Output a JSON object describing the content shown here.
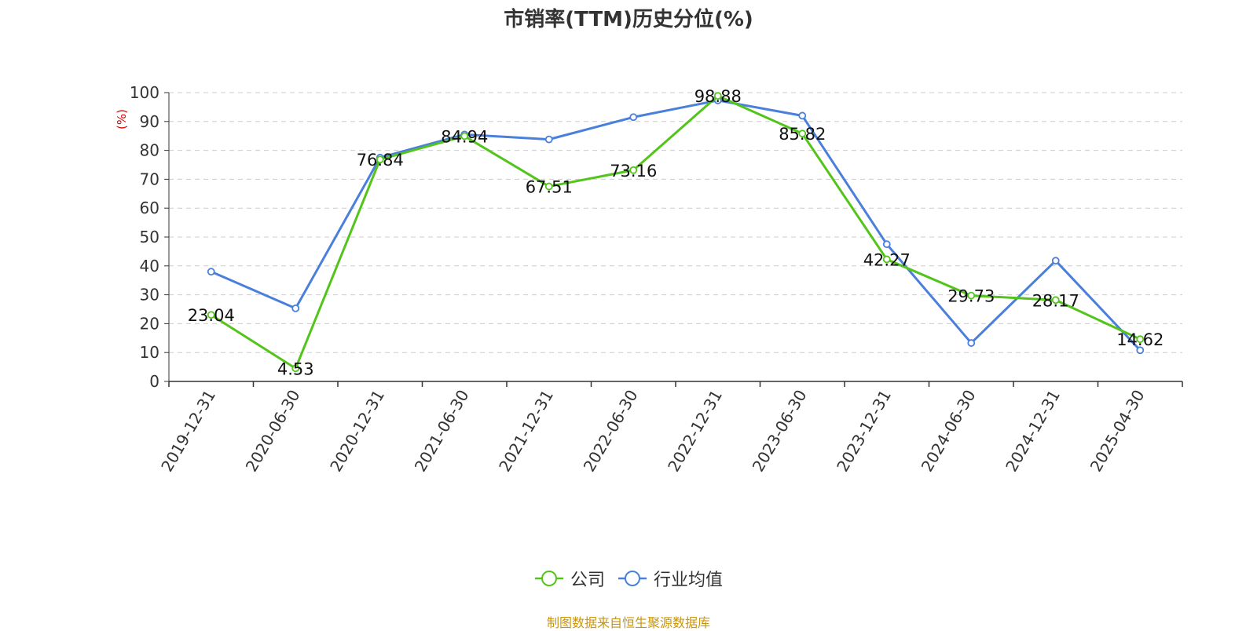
{
  "title": "市销率(TTM)历史分位(%)",
  "source": "制图数据来自恒生聚源数据库",
  "source_color": "#c8960c",
  "chart_data": {
    "type": "line",
    "title": "市销率(TTM)历史分位(%)",
    "ylabel": "(%)",
    "ylabel_color": "#e60000",
    "ylim": [
      0,
      100
    ],
    "yticks": [
      0,
      10,
      20,
      30,
      40,
      50,
      60,
      70,
      80,
      90,
      100
    ],
    "grid": true,
    "legend_position": "bottom-center",
    "categories": [
      "2019-12-31",
      "2020-06-30",
      "2020-12-31",
      "2021-06-30",
      "2021-12-31",
      "2022-06-30",
      "2022-12-31",
      "2023-06-30",
      "2023-12-31",
      "2024-06-30",
      "2024-12-31",
      "2025-04-30"
    ],
    "series": [
      {
        "name": "公司",
        "color": "#52c41a",
        "values": [
          23.04,
          4.53,
          76.84,
          84.94,
          67.51,
          73.16,
          98.88,
          85.82,
          42.27,
          29.73,
          28.17,
          14.62
        ],
        "labels": [
          "23.04",
          "4.53",
          "76.84",
          "84.94",
          "67.51",
          "73.16",
          "98.88",
          "85.82",
          "42.27",
          "29.73",
          "28.17",
          "14.62"
        ]
      },
      {
        "name": "行业均值",
        "color": "#4a7fdc",
        "values": [
          38.0,
          25.3,
          77.5,
          85.5,
          83.8,
          91.5,
          97.3,
          92.0,
          47.5,
          13.3,
          41.8,
          10.8
        ]
      }
    ]
  }
}
